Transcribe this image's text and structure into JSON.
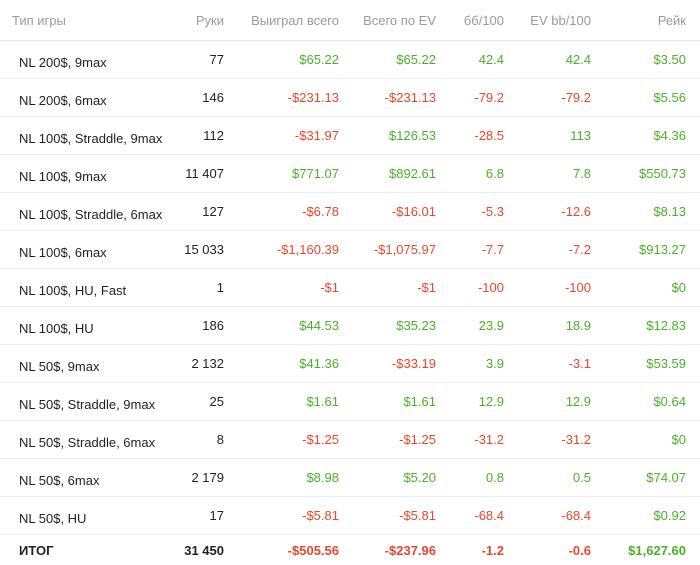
{
  "headers": [
    "Тип игры",
    "Руки",
    "Выиграл всего",
    "Всего по EV",
    "бб/100",
    "EV bb/100",
    "Рейк"
  ],
  "rows": [
    {
      "game": "NL 200$, 9max",
      "hands": "77",
      "won": "$65.22",
      "ev": "$65.22",
      "bb100": "42.4",
      "evbb100": "42.4",
      "rake": "$3.50"
    },
    {
      "game": "NL 200$, 6max",
      "hands": "146",
      "won": "-$231.13",
      "ev": "-$231.13",
      "bb100": "-79.2",
      "evbb100": "-79.2",
      "rake": "$5.56"
    },
    {
      "game": "NL 100$, Straddle, 9max",
      "hands": "112",
      "won": "-$31.97",
      "ev": "$126.53",
      "bb100": "-28.5",
      "evbb100": "113",
      "rake": "$4.36"
    },
    {
      "game": "NL 100$, 9max",
      "hands": "11 407",
      "won": "$771.07",
      "ev": "$892.61",
      "bb100": "6.8",
      "evbb100": "7.8",
      "rake": "$550.73"
    },
    {
      "game": "NL 100$, Straddle, 6max",
      "hands": "127",
      "won": "-$6.78",
      "ev": "-$16.01",
      "bb100": "-5.3",
      "evbb100": "-12.6",
      "rake": "$8.13"
    },
    {
      "game": "NL 100$, 6max",
      "hands": "15 033",
      "won": "-$1,160.39",
      "ev": "-$1,075.97",
      "bb100": "-7.7",
      "evbb100": "-7.2",
      "rake": "$913.27"
    },
    {
      "game": "NL 100$, HU, Fast",
      "hands": "1",
      "won": "-$1",
      "ev": "-$1",
      "bb100": "-100",
      "evbb100": "-100",
      "rake": "$0"
    },
    {
      "game": "NL 100$, HU",
      "hands": "186",
      "won": "$44.53",
      "ev": "$35.23",
      "bb100": "23.9",
      "evbb100": "18.9",
      "rake": "$12.83"
    },
    {
      "game": "NL 50$, 9max",
      "hands": "2 132",
      "won": "$41.36",
      "ev": "-$33.19",
      "bb100": "3.9",
      "evbb100": "-3.1",
      "rake": "$53.59"
    },
    {
      "game": "NL 50$, Straddle, 9max",
      "hands": "25",
      "won": "$1.61",
      "ev": "$1.61",
      "bb100": "12.9",
      "evbb100": "12.9",
      "rake": "$0.64"
    },
    {
      "game": "NL 50$, Straddle, 6max",
      "hands": "8",
      "won": "-$1.25",
      "ev": "-$1.25",
      "bb100": "-31.2",
      "evbb100": "-31.2",
      "rake": "$0"
    },
    {
      "game": "NL 50$, 6max",
      "hands": "2 179",
      "won": "$8.98",
      "ev": "$5.20",
      "bb100": "0.8",
      "evbb100": "0.5",
      "rake": "$74.07"
    },
    {
      "game": "NL 50$, HU",
      "hands": "17",
      "won": "-$5.81",
      "ev": "-$5.81",
      "bb100": "-68.4",
      "evbb100": "-68.4",
      "rake": "$0.92"
    }
  ],
  "total": {
    "game": "ИТОГ",
    "hands": "31 450",
    "won": "-$505.56",
    "ev": "-$237.96",
    "bb100": "-1.2",
    "evbb100": "-0.6",
    "rake": "$1,627.60"
  },
  "colors": {
    "positive": "#4caf2a",
    "negative": "#e2492b",
    "header": "#9a9a9a"
  }
}
